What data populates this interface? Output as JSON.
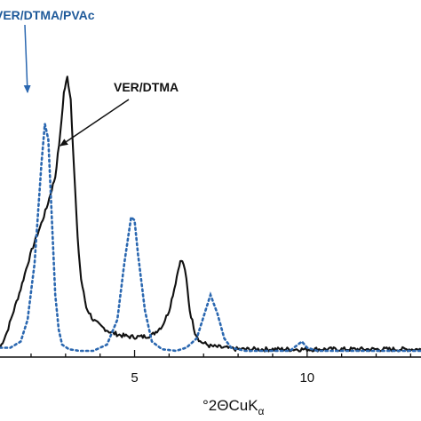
{
  "chart_data": {
    "type": "line",
    "xlabel_main": "°2ΘCuK",
    "xlabel_sub": "α",
    "xlim": [
      1.1,
      13.3
    ],
    "ylim": [
      0,
      100
    ],
    "x_ticks": [
      5,
      10
    ],
    "x_tick_labels": [
      "5",
      "10"
    ],
    "grid": false,
    "series": [
      {
        "name": "VER/DTMA",
        "color": "#111111",
        "style": "solid",
        "x": [
          1.1,
          1.3,
          1.5,
          1.7,
          1.9,
          2.1,
          2.3,
          2.45,
          2.6,
          2.7,
          2.85,
          2.95,
          3.05,
          3.15,
          3.25,
          3.35,
          3.45,
          3.6,
          3.8,
          4.0,
          4.3,
          4.6,
          4.9,
          5.2,
          5.5,
          5.8,
          6.0,
          6.15,
          6.3,
          6.35,
          6.42,
          6.5,
          6.6,
          6.75,
          6.9,
          7.2,
          7.6,
          8.0,
          9.0,
          10.0,
          11.0,
          12.0,
          13.3
        ],
        "y": [
          3,
          8,
          15,
          22,
          30,
          37,
          43,
          48,
          54,
          58,
          72,
          85,
          90,
          83,
          60,
          38,
          25,
          16,
          12,
          10,
          8,
          7,
          6.5,
          6.5,
          7,
          10,
          15,
          22,
          30,
          31,
          30,
          25,
          15,
          8,
          5,
          3.5,
          3,
          2.5,
          2.5,
          2.5,
          2.5,
          2.5,
          2.5
        ]
      },
      {
        "name": "VER/DTMA/PVAc",
        "color": "#2a67b0",
        "style": "dotted",
        "x": [
          1.1,
          1.4,
          1.7,
          1.9,
          2.1,
          2.3,
          2.4,
          2.5,
          2.6,
          2.7,
          2.8,
          2.9,
          3.1,
          3.4,
          3.8,
          4.2,
          4.5,
          4.7,
          4.9,
          5.0,
          5.1,
          5.3,
          5.5,
          5.8,
          6.2,
          6.5,
          6.8,
          7.0,
          7.2,
          7.4,
          7.6,
          7.8,
          8.2,
          8.8,
          9.5,
          9.85,
          10.0,
          10.3,
          11.0,
          12.0,
          13.3
        ],
        "y": [
          3,
          3,
          5,
          12,
          30,
          62,
          75,
          70,
          45,
          20,
          9,
          4,
          2.5,
          2,
          2,
          4,
          12,
          30,
          45,
          44,
          33,
          15,
          5,
          2.5,
          2,
          3,
          6,
          13,
          20,
          14,
          6,
          3,
          2,
          2,
          2,
          5,
          3,
          2,
          2,
          2,
          2
        ]
      }
    ],
    "annotations": [
      {
        "text": "VER/DTMA",
        "color": "#111111"
      },
      {
        "text": "VER/DTMA/PVAc",
        "color": "#1f5a9a"
      }
    ]
  }
}
